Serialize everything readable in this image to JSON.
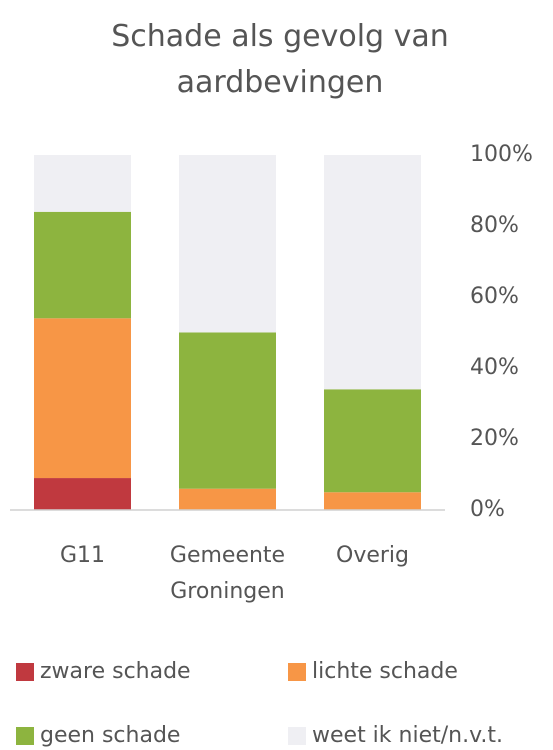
{
  "chart_data": {
    "type": "stacked-bar",
    "title": "Schade als gevolg van aardbevingen",
    "categories": [
      "G11",
      "Gemeente Groningen",
      "Overig"
    ],
    "series": [
      {
        "name": "zware schade",
        "color": "#c0393f",
        "values": [
          9,
          0,
          0
        ]
      },
      {
        "name": "lichte schade",
        "color": "#f79646",
        "values": [
          45,
          6,
          5
        ]
      },
      {
        "name": "geen schade",
        "color": "#8db43f",
        "values": [
          30,
          44,
          29
        ]
      },
      {
        "name": "weet ik niet/n.v.t.",
        "color": "#efeff3",
        "values": [
          16,
          50,
          66
        ]
      }
    ],
    "ylim": [
      0,
      100
    ],
    "yticks": [
      {
        "value": 0,
        "label": "0%"
      },
      {
        "value": 20,
        "label": "20%"
      },
      {
        "value": 40,
        "label": "40%"
      },
      {
        "value": 60,
        "label": "60%"
      },
      {
        "value": 80,
        "label": "80%"
      },
      {
        "value": 100,
        "label": "100%"
      }
    ],
    "y_axis_side": "right",
    "grid": false,
    "legend": "bottom"
  }
}
